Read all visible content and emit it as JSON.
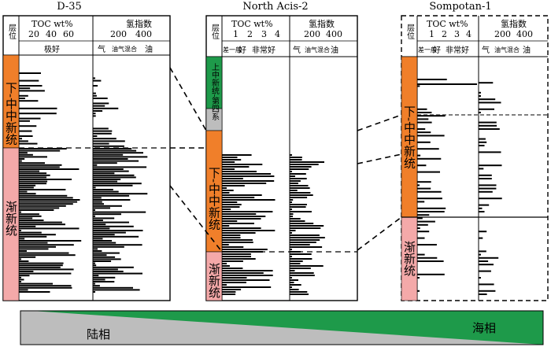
{
  "wells": [
    {
      "name": "D-35",
      "col_layer": "层位",
      "toc": {
        "title": "TOC  wt%",
        "ticks": [
          "20",
          "40",
          "60"
        ],
        "classes": [
          "极好"
        ]
      },
      "hi": {
        "title": "氢指数",
        "ticks": [
          "200",
          "400"
        ],
        "classes": [
          "气",
          "油气混合",
          "油"
        ]
      },
      "zones": [
        {
          "label": "下-中中新统",
          "color": "#f07f2a"
        },
        {
          "label": "渐新统",
          "color": "#f4a9a9"
        }
      ]
    },
    {
      "name": "North Acis-2",
      "col_layer": "层位",
      "toc": {
        "title": "TOC  wt%",
        "ticks": [
          "1",
          "2",
          "3",
          "4"
        ],
        "classes": [
          "差",
          "一般",
          "好",
          "非常好"
        ]
      },
      "hi": {
        "title": "氢指数",
        "ticks": [
          "200",
          "400"
        ],
        "classes": [
          "气",
          "油气混合",
          "油"
        ]
      },
      "zones": [
        {
          "label": "上中新统-第四系",
          "color": "#1e9a4a"
        },
        {
          "label": "下-中中新统",
          "color": "#f07f2a"
        },
        {
          "label": "渐新统",
          "color": "#f4a9a9"
        }
      ]
    },
    {
      "name": "Sompotan-1",
      "col_layer": "层位",
      "toc": {
        "title": "TOC  wt%",
        "ticks": [
          "1",
          "2",
          "3",
          "4"
        ],
        "classes": [
          "差",
          "一般",
          "好",
          "非常好"
        ]
      },
      "hi": {
        "title": "氢指数",
        "ticks": [
          "200",
          "400"
        ],
        "classes": [
          "气",
          "油气混合",
          "油"
        ]
      },
      "zones": [
        {
          "label": "下-中中新统",
          "color": "#f07f2a"
        },
        {
          "label": "渐新统",
          "color": "#f4a9a9"
        }
      ]
    }
  ],
  "facies": {
    "left": "陆相",
    "right": "海相",
    "left_color": "#bdbdbd",
    "right_color": "#1e9a4a"
  }
}
